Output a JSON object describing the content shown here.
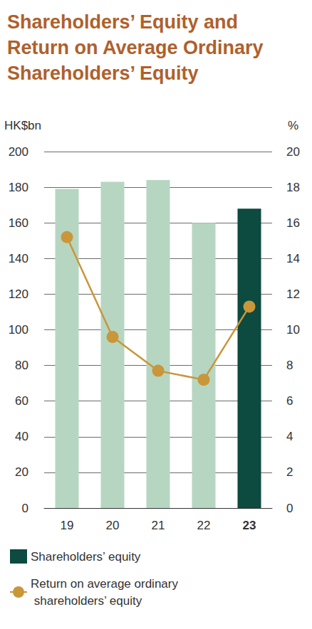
{
  "chart_data": {
    "type": "bar",
    "title": "Shareholders’ Equity and Return on Average Ordinary Shareholders’ Equity",
    "y_label": "HK$bn",
    "y2_label": "%",
    "categories": [
      "19",
      "20",
      "21",
      "22",
      "23"
    ],
    "series": [
      {
        "name": "Shareholders’ equity",
        "type": "bar",
        "color": "#0d4a3f",
        "colors": [
          "#b6d6c2",
          "#b6d6c2",
          "#b6d6c2",
          "#b6d6c2",
          "#0d4a3f"
        ],
        "values": [
          179,
          183,
          184,
          160,
          168
        ]
      },
      {
        "name": "Return on average ordinary shareholders’ equity",
        "type": "line",
        "axis": "y2",
        "color": "#c9963a",
        "marker": "circle",
        "values": [
          15.2,
          9.6,
          7.7,
          7.2,
          11.3
        ]
      }
    ],
    "ylim": [
      0,
      200
    ],
    "yticks": [
      0,
      20,
      40,
      60,
      80,
      100,
      120,
      140,
      160,
      180,
      200
    ],
    "y2lim": [
      0,
      20
    ],
    "y2ticks": [
      0,
      2,
      4,
      6,
      8,
      10,
      12,
      14,
      16,
      18,
      20
    ],
    "grid": true,
    "legend": "bottom"
  }
}
